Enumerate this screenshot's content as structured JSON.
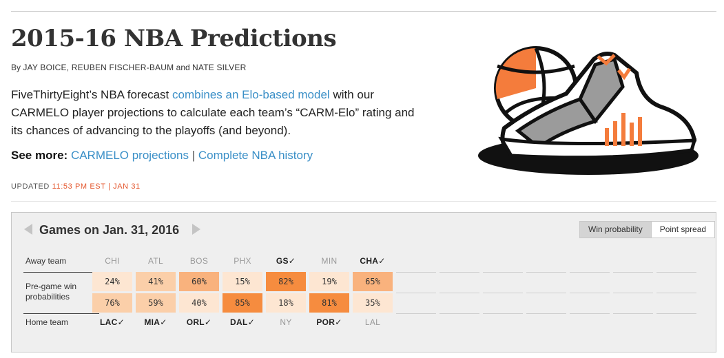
{
  "header": {
    "title": "2015-16 NBA Predictions",
    "by_prefix": "By",
    "authors_a": "JAY BOICE, REUBEN FISCHER-BAUM",
    "authors_and": "and",
    "authors_b": "NATE SILVER"
  },
  "intro": {
    "part1": "FiveThirtyEight’s NBA forecast",
    "link": "combines an Elo-based model",
    "part2": "with our CARMELO player projections to calculate each team’s “CARM-Elo” rating and its chances of advancing to the playoffs (and beyond)."
  },
  "see_more": {
    "label": "See more:",
    "link1": "CARMELO projections",
    "separator": "|",
    "link2": "Complete NBA history"
  },
  "updated": {
    "label": "UPDATED",
    "stamp": "11:53 PM EST | JAN 31"
  },
  "games": {
    "title": "Games on Jan. 31, 2016",
    "toggle": {
      "win_probability": "Win probability",
      "point_spread": "Point spread",
      "active": "win_probability"
    },
    "row_labels": {
      "away": "Away team",
      "pregame_line1": "Pre-game win",
      "pregame_line2": "probabilities",
      "home": "Home team"
    },
    "colors": {
      "heavy": "#f68c3f",
      "strong": "#f9b27d",
      "medium": "#fbcfa9",
      "light": "#fde6d2"
    },
    "list": [
      {
        "away": "CHI",
        "away_win": false,
        "away_prob": "24%",
        "home": "LAC✓",
        "home_win": true,
        "home_prob": "76%",
        "away_shade": "light",
        "home_shade": "medium"
      },
      {
        "away": "ATL",
        "away_win": false,
        "away_prob": "41%",
        "home": "MIA✓",
        "home_win": true,
        "home_prob": "59%",
        "away_shade": "medium",
        "home_shade": "medium"
      },
      {
        "away": "BOS",
        "away_win": false,
        "away_prob": "60%",
        "home": "ORL✓",
        "home_win": true,
        "home_prob": "40%",
        "away_shade": "strong",
        "home_shade": "light"
      },
      {
        "away": "PHX",
        "away_win": false,
        "away_prob": "15%",
        "home": "DAL✓",
        "home_win": true,
        "home_prob": "85%",
        "away_shade": "light",
        "home_shade": "heavy"
      },
      {
        "away": "GS✓",
        "away_win": true,
        "away_prob": "82%",
        "home": "NY",
        "home_win": false,
        "home_prob": "18%",
        "away_shade": "heavy",
        "home_shade": "light"
      },
      {
        "away": "MIN",
        "away_win": false,
        "away_prob": "19%",
        "home": "POR✓",
        "home_win": true,
        "home_prob": "81%",
        "away_shade": "light",
        "home_shade": "heavy"
      },
      {
        "away": "CHA✓",
        "away_win": true,
        "away_prob": "65%",
        "home": "LAL",
        "home_win": false,
        "home_prob": "35%",
        "away_shade": "strong",
        "home_shade": "light"
      }
    ],
    "empty_slots": 7
  }
}
